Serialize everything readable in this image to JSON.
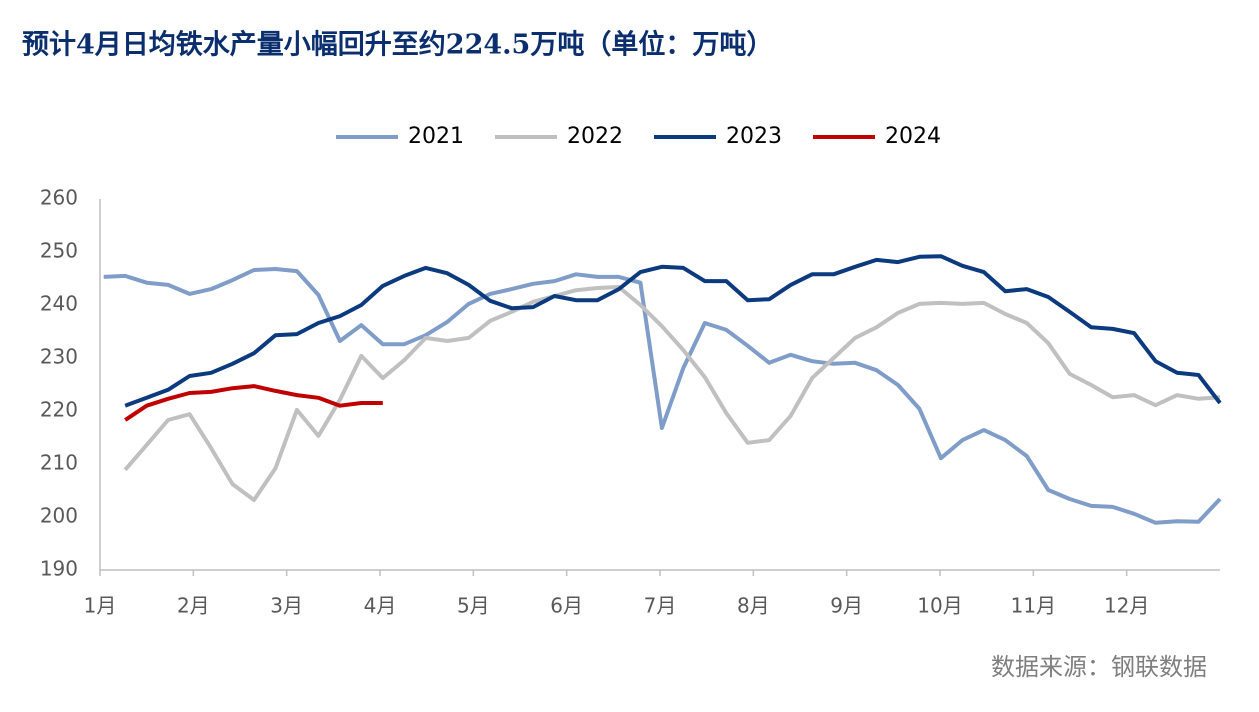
{
  "chart_data": {
    "type": "line",
    "title": "预计4月日均铁水产量小幅回升至约224.5万吨（单位：万吨）",
    "source": "数据来源：钢联数据",
    "legend": "top",
    "xlim": [
      1,
      13
    ],
    "xticks": [
      {
        "value": 1,
        "label": "1月"
      },
      {
        "value": 2,
        "label": "2月"
      },
      {
        "value": 3,
        "label": "3月"
      },
      {
        "value": 4,
        "label": "4月"
      },
      {
        "value": 5,
        "label": "5月"
      },
      {
        "value": 6,
        "label": "6月"
      },
      {
        "value": 7,
        "label": "7月"
      },
      {
        "value": 8,
        "label": "8月"
      },
      {
        "value": 9,
        "label": "9月"
      },
      {
        "value": 10,
        "label": "10月"
      },
      {
        "value": 11,
        "label": "11月"
      },
      {
        "value": 12,
        "label": "12月"
      }
    ],
    "ylim": [
      190,
      260
    ],
    "yticks": [
      190,
      200,
      210,
      220,
      230,
      240,
      250,
      260
    ],
    "x": [
      1.04,
      1.27,
      1.5,
      1.73,
      1.96,
      2.19,
      2.42,
      2.65,
      2.88,
      3.11,
      3.34,
      3.57,
      3.8,
      4.03,
      4.26,
      4.49,
      4.72,
      4.95,
      5.18,
      5.41,
      5.64,
      5.87,
      6.1,
      6.33,
      6.56,
      6.79,
      7.02,
      7.25,
      7.48,
      7.71,
      7.94,
      8.17,
      8.4,
      8.63,
      8.86,
      9.09,
      9.32,
      9.55,
      9.78,
      10.01,
      10.24,
      10.47,
      10.7,
      10.93,
      11.16,
      11.39,
      11.62,
      11.85,
      12.08,
      12.31,
      12.54,
      12.77,
      13.0
    ],
    "series": [
      {
        "name": "2021",
        "color": "#7f9dc8",
        "values": [
          245.3,
          245.5,
          244.2,
          243.8,
          242.1,
          243.0,
          244.7,
          246.6,
          246.8,
          246.4,
          241.9,
          233.2,
          236.2,
          232.6,
          232.6,
          234.3,
          236.8,
          240.2,
          242.1,
          243.0,
          244.0,
          244.5,
          245.8,
          245.3,
          245.3,
          244.2,
          216.8,
          228.1,
          236.6,
          235.3,
          232.3,
          229.1,
          230.6,
          229.4,
          228.9,
          229.1,
          227.7,
          224.9,
          220.4,
          211.1,
          214.5,
          216.4,
          214.5,
          211.5,
          205.1,
          203.4,
          202.1,
          201.9,
          200.6,
          198.9,
          199.2,
          199.1,
          203.4
        ]
      },
      {
        "name": "2022",
        "color": "#c0c0c0",
        "values": [
          null,
          208.9,
          213.6,
          218.3,
          219.4,
          213.0,
          206.2,
          203.2,
          209.2,
          220.2,
          215.3,
          222.1,
          230.4,
          226.2,
          229.6,
          233.8,
          233.2,
          233.8,
          237.0,
          238.7,
          240.6,
          241.7,
          242.8,
          243.2,
          243.4,
          240.0,
          236.0,
          231.5,
          226.4,
          219.6,
          214.0,
          214.5,
          219.1,
          226.2,
          230.0,
          233.8,
          235.8,
          238.5,
          240.2,
          240.4,
          240.2,
          240.4,
          238.3,
          236.6,
          232.8,
          227.0,
          224.9,
          222.6,
          223.0,
          221.1,
          223.0,
          222.3,
          222.6
        ]
      },
      {
        "name": "2023",
        "color": "#0b3a7f",
        "values": [
          null,
          221.0,
          222.5,
          224.0,
          226.6,
          227.2,
          228.9,
          230.9,
          234.3,
          234.5,
          236.6,
          237.9,
          240.0,
          243.6,
          245.5,
          247.0,
          246.0,
          243.8,
          240.8,
          239.4,
          239.6,
          241.7,
          240.9,
          240.9,
          243.0,
          246.2,
          247.2,
          247.0,
          244.5,
          244.5,
          240.9,
          241.1,
          243.8,
          245.8,
          245.8,
          247.2,
          248.5,
          248.1,
          249.1,
          249.2,
          247.4,
          246.2,
          242.6,
          243.0,
          241.5,
          238.7,
          235.8,
          235.5,
          234.7,
          229.4,
          227.2,
          226.8,
          221.5
        ]
      },
      {
        "name": "2024",
        "color": "#c00000",
        "values": [
          null,
          218.3,
          221.0,
          222.3,
          223.4,
          223.6,
          224.3,
          224.7,
          223.8,
          223.0,
          222.5,
          221.0,
          221.5,
          221.5,
          null,
          null,
          null,
          null,
          null,
          null,
          null,
          null,
          null,
          null,
          null,
          null,
          null,
          null,
          null,
          null,
          null,
          null,
          null,
          null,
          null,
          null,
          null,
          null,
          null,
          null,
          null,
          null,
          null,
          null,
          null,
          null,
          null,
          null,
          null,
          null,
          null,
          null,
          null
        ]
      }
    ]
  }
}
